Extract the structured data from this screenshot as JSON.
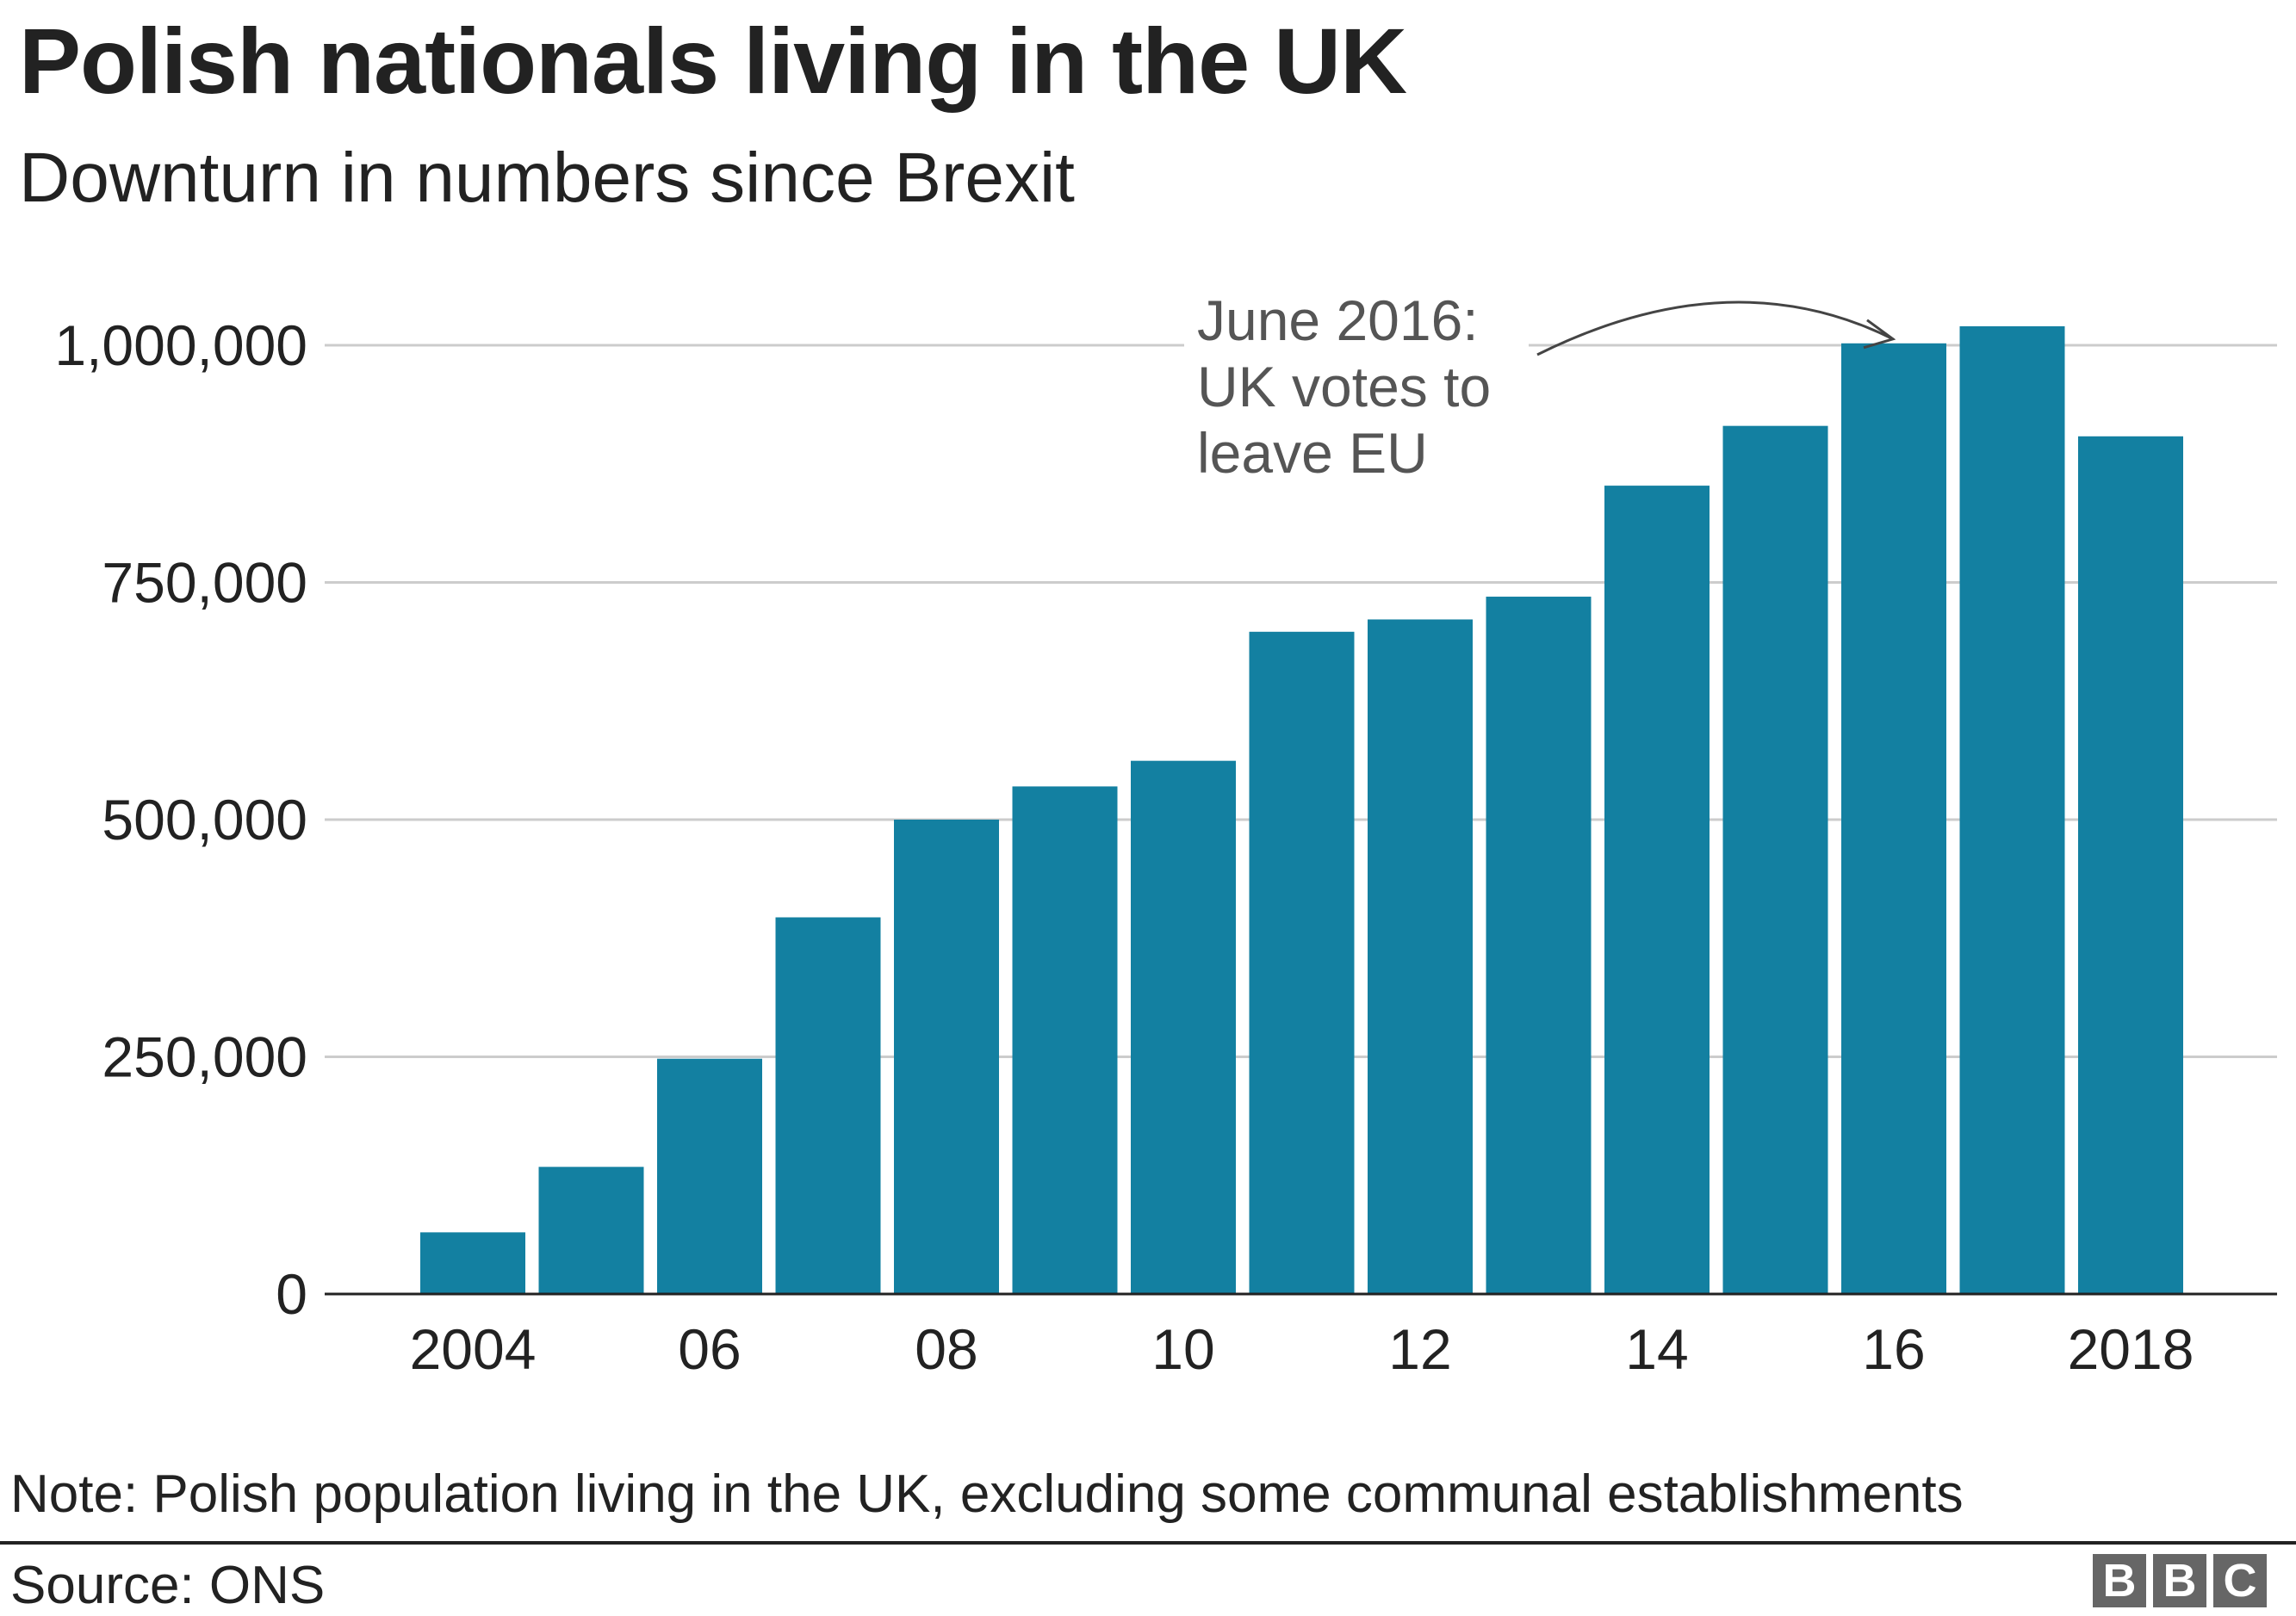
{
  "chart_data": {
    "type": "bar",
    "title": "Polish nationals living in the UK",
    "subtitle": "Downturn in numbers since Brexit",
    "categories": [
      "2004",
      "2005",
      "2006",
      "2007",
      "2008",
      "2009",
      "2010",
      "2011",
      "2012",
      "2013",
      "2014",
      "2015",
      "2016",
      "2017",
      "2018"
    ],
    "values": [
      65000,
      134000,
      248000,
      397000,
      500000,
      535000,
      562000,
      698000,
      711000,
      735000,
      852000,
      915000,
      1002000,
      1020000,
      904000
    ],
    "x_tick_labels": [
      {
        "category": "2004",
        "label": "2004"
      },
      {
        "category": "2006",
        "label": "06"
      },
      {
        "category": "2008",
        "label": "08"
      },
      {
        "category": "2010",
        "label": "10"
      },
      {
        "category": "2012",
        "label": "12"
      },
      {
        "category": "2014",
        "label": "14"
      },
      {
        "category": "2016",
        "label": "16"
      },
      {
        "category": "2018",
        "label": "2018"
      }
    ],
    "y_ticks": [
      {
        "value": 0,
        "label": "0"
      },
      {
        "value": 250000,
        "label": "250,000"
      },
      {
        "value": 500000,
        "label": "500,000"
      },
      {
        "value": 750000,
        "label": "750,000"
      },
      {
        "value": 1000000,
        "label": "1,000,000"
      }
    ],
    "ylim": [
      0,
      1000000
    ],
    "xlabel": "",
    "ylabel": "",
    "grid": true,
    "bar_color": "#1380a1",
    "annotation": {
      "lines": [
        "June 2016:",
        "UK votes to",
        "leave EU"
      ],
      "target_category": "2016"
    }
  },
  "note": "Note: Polish population living in the UK, excluding some communal establishments",
  "source": "Source: ONS",
  "logo": [
    "B",
    "B",
    "C"
  ]
}
